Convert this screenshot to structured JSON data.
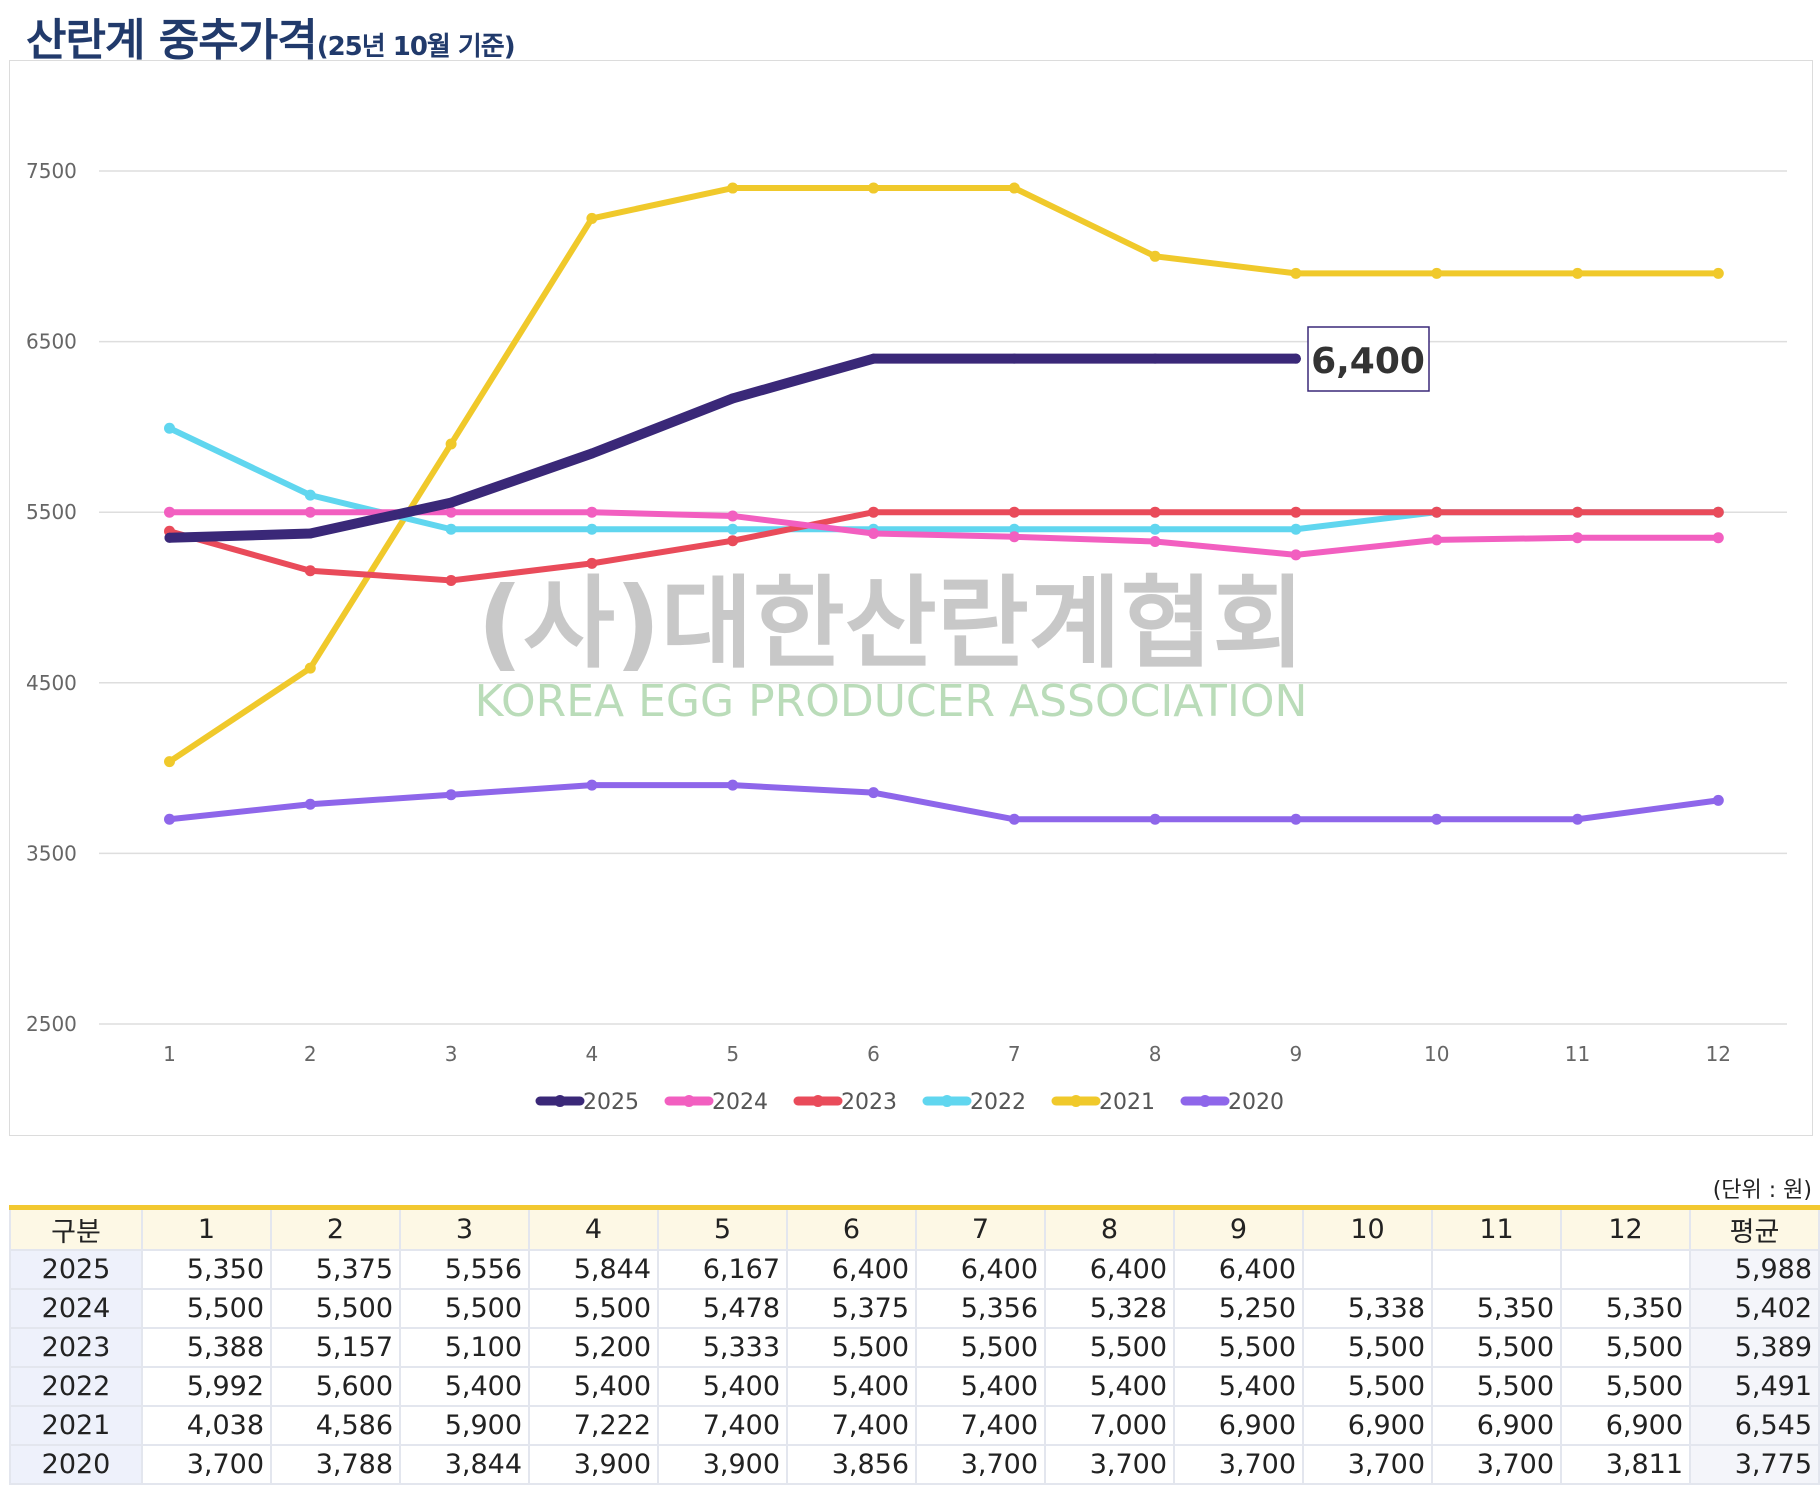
{
  "title": {
    "main": "산란계 중추가격",
    "sub": "(25년 10월 기준)"
  },
  "watermark": {
    "korean": "(사)대한산란계협회",
    "english": "KOREA EGG PRODUCER ASSOCIATION"
  },
  "callout": "6,400",
  "unit": "(단위 : 원)",
  "chart_data": {
    "type": "line",
    "title": "산란계 중추가격(25년 10월 기준)",
    "xlabel": "",
    "ylabel": "",
    "x": [
      1,
      2,
      3,
      4,
      5,
      6,
      7,
      8,
      9,
      10,
      11,
      12
    ],
    "ylim": [
      2500,
      7500
    ],
    "yticks": [
      2500,
      3500,
      4500,
      5500,
      6500,
      7500
    ],
    "grid": true,
    "legend": "bottom",
    "series": [
      {
        "name": "2025",
        "color": "#3a2878",
        "values": [
          5350,
          5375,
          5556,
          5844,
          6167,
          6400,
          6400,
          6400,
          6400,
          null,
          null,
          null
        ]
      },
      {
        "name": "2024",
        "color": "#f25fc0",
        "values": [
          5500,
          5500,
          5500,
          5500,
          5478,
          5375,
          5356,
          5328,
          5250,
          5338,
          5350,
          5350
        ]
      },
      {
        "name": "2023",
        "color": "#e94b5a",
        "values": [
          5388,
          5157,
          5100,
          5200,
          5333,
          5500,
          5500,
          5500,
          5500,
          5500,
          5500,
          5500
        ]
      },
      {
        "name": "2022",
        "color": "#60d6ef",
        "values": [
          5992,
          5600,
          5400,
          5400,
          5400,
          5400,
          5400,
          5400,
          5400,
          5500,
          5500,
          5500
        ]
      },
      {
        "name": "2021",
        "color": "#f0c92b",
        "values": [
          4038,
          4586,
          5900,
          7222,
          7400,
          7400,
          7400,
          7000,
          6900,
          6900,
          6900,
          6900
        ]
      },
      {
        "name": "2020",
        "color": "#8e66ea",
        "values": [
          3700,
          3788,
          3844,
          3900,
          3900,
          3856,
          3700,
          3700,
          3700,
          3700,
          3700,
          3811
        ]
      }
    ],
    "annotations": [
      "6,400"
    ]
  },
  "table": {
    "headers": [
      "구분",
      "1",
      "2",
      "3",
      "4",
      "5",
      "6",
      "7",
      "8",
      "9",
      "10",
      "11",
      "12",
      "평균"
    ],
    "rows": [
      [
        "2025",
        "5,350",
        "5,375",
        "5,556",
        "5,844",
        "6,167",
        "6,400",
        "6,400",
        "6,400",
        "6,400",
        "",
        "",
        "",
        "5,988"
      ],
      [
        "2024",
        "5,500",
        "5,500",
        "5,500",
        "5,500",
        "5,478",
        "5,375",
        "5,356",
        "5,328",
        "5,250",
        "5,338",
        "5,350",
        "5,350",
        "5,402"
      ],
      [
        "2023",
        "5,388",
        "5,157",
        "5,100",
        "5,200",
        "5,333",
        "5,500",
        "5,500",
        "5,500",
        "5,500",
        "5,500",
        "5,500",
        "5,500",
        "5,389"
      ],
      [
        "2022",
        "5,992",
        "5,600",
        "5,400",
        "5,400",
        "5,400",
        "5,400",
        "5,400",
        "5,400",
        "5,400",
        "5,500",
        "5,500",
        "5,500",
        "5,491"
      ],
      [
        "2021",
        "4,038",
        "4,586",
        "5,900",
        "7,222",
        "7,400",
        "7,400",
        "7,400",
        "7,000",
        "6,900",
        "6,900",
        "6,900",
        "6,900",
        "6,545"
      ],
      [
        "2020",
        "3,700",
        "3,788",
        "3,844",
        "3,900",
        "3,900",
        "3,856",
        "3,700",
        "3,700",
        "3,700",
        "3,700",
        "3,700",
        "3,811",
        "3,775"
      ]
    ]
  }
}
